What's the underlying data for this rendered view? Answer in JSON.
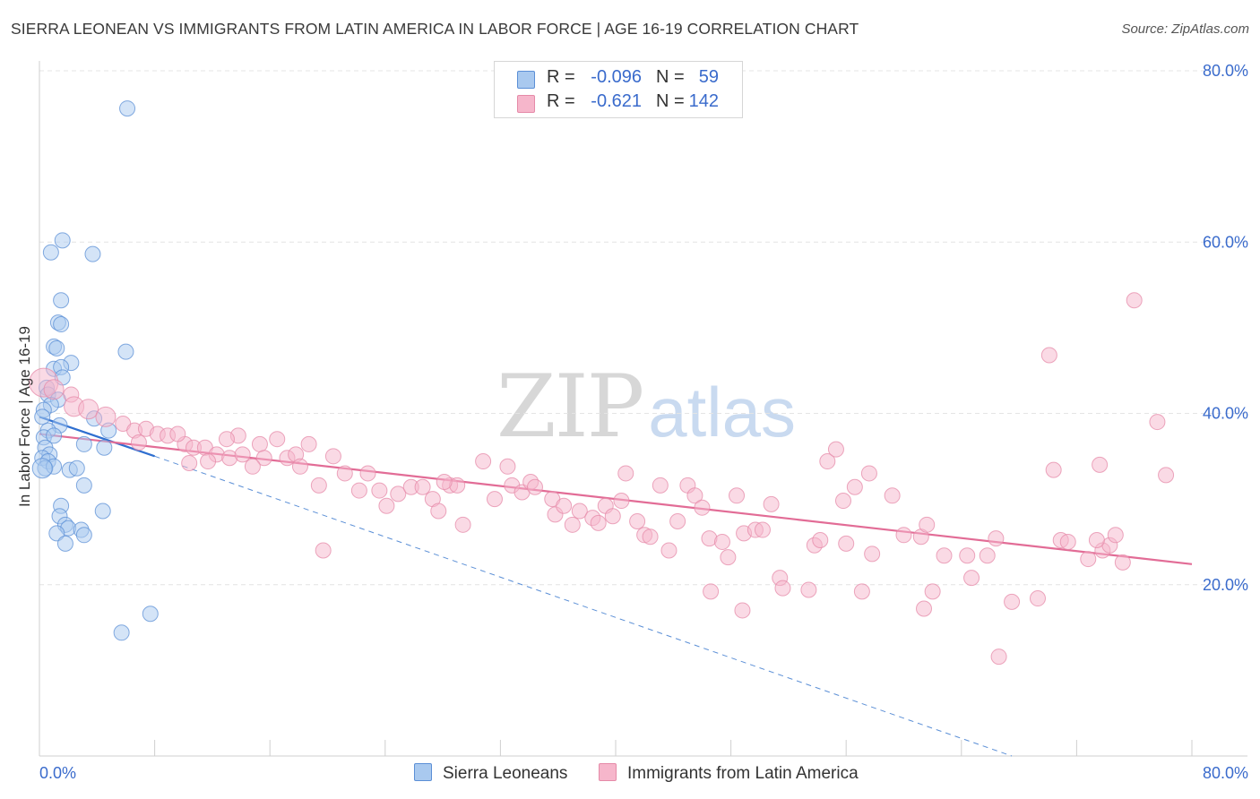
{
  "title": "SIERRA LEONEAN VS IMMIGRANTS FROM LATIN AMERICA IN LABOR FORCE | AGE 16-19 CORRELATION CHART",
  "source": "Source: ZipAtlas.com",
  "watermark": {
    "zip": "ZIP",
    "atlas": "atlas"
  },
  "colors": {
    "blue_fill": "#a9c9ef",
    "blue_stroke": "#5b8fd6",
    "blue_line": "#2f6fd0",
    "pink_fill": "#f6b6cb",
    "pink_stroke": "#e58aa8",
    "pink_line": "#e26c96",
    "axis_label": "#3a6bcc",
    "grid": "#e4e4e4"
  },
  "legend": [
    {
      "r_label": "R =",
      "r_value": "-0.096",
      "n_label": "N =",
      "n_value": "59",
      "color": "#a9c9ef",
      "border": "#5b8fd6"
    },
    {
      "r_label": "R =",
      "r_value": "-0.621",
      "n_label": "N =",
      "n_value": "142",
      "color": "#f6b6cb",
      "border": "#e58aa8"
    }
  ],
  "bottom_legend": [
    {
      "label": "Sierra Leoneans",
      "color": "#a9c9ef",
      "border": "#5b8fd6"
    },
    {
      "label": "Immigrants from Latin America",
      "color": "#f6b6cb",
      "border": "#e58aa8"
    }
  ],
  "chart_data": {
    "type": "scatter",
    "title": "SIERRA LEONEAN VS IMMIGRANTS FROM LATIN AMERICA IN LABOR FORCE | AGE 16-19 CORRELATION CHART",
    "xlabel": "",
    "ylabel": "In Labor Force | Age 16-19",
    "xlim": [
      0,
      80
    ],
    "ylim": [
      0,
      80
    ],
    "x_tick_labels": [
      "0.0%",
      "80.0%"
    ],
    "y_ticks": [
      20,
      40,
      60,
      80
    ],
    "y_tick_labels": [
      "20.0%",
      "40.0%",
      "60.0%",
      "80.0%"
    ],
    "series": [
      {
        "name": "Sierra Leoneans",
        "r": -0.096,
        "n": 59,
        "trend": {
          "x": [
            0,
            8
          ],
          "y": [
            39.6,
            35.0
          ]
        },
        "trend_extended": {
          "x": [
            8,
            67.5
          ],
          "y": [
            35.0,
            0
          ]
        },
        "points": [
          {
            "x": 6.1,
            "y": 75.6,
            "s": 1
          },
          {
            "x": 1.6,
            "y": 60.2,
            "s": 1
          },
          {
            "x": 0.8,
            "y": 58.8,
            "s": 1
          },
          {
            "x": 3.7,
            "y": 58.6,
            "s": 1
          },
          {
            "x": 1.5,
            "y": 53.2,
            "s": 1
          },
          {
            "x": 1.3,
            "y": 50.6,
            "s": 1
          },
          {
            "x": 1.5,
            "y": 50.4,
            "s": 1
          },
          {
            "x": 1.0,
            "y": 47.8,
            "s": 1
          },
          {
            "x": 1.2,
            "y": 47.6,
            "s": 1
          },
          {
            "x": 6.0,
            "y": 47.2,
            "s": 1
          },
          {
            "x": 2.2,
            "y": 45.9,
            "s": 1
          },
          {
            "x": 1.0,
            "y": 45.2,
            "s": 1
          },
          {
            "x": 1.5,
            "y": 45.4,
            "s": 1
          },
          {
            "x": 1.6,
            "y": 44.2,
            "s": 1
          },
          {
            "x": 0.5,
            "y": 43.0,
            "s": 1
          },
          {
            "x": 0.6,
            "y": 42.2,
            "s": 1
          },
          {
            "x": 1.3,
            "y": 41.6,
            "s": 1
          },
          {
            "x": 0.8,
            "y": 41.0,
            "s": 1
          },
          {
            "x": 0.3,
            "y": 40.4,
            "s": 1
          },
          {
            "x": 0.2,
            "y": 39.6,
            "s": 1
          },
          {
            "x": 3.8,
            "y": 39.4,
            "s": 1
          },
          {
            "x": 1.4,
            "y": 38.6,
            "s": 1
          },
          {
            "x": 0.6,
            "y": 38.0,
            "s": 1
          },
          {
            "x": 0.3,
            "y": 37.2,
            "s": 1
          },
          {
            "x": 1.0,
            "y": 37.4,
            "s": 1
          },
          {
            "x": 4.8,
            "y": 38.0,
            "s": 1
          },
          {
            "x": 3.1,
            "y": 36.4,
            "s": 1
          },
          {
            "x": 4.5,
            "y": 36.0,
            "s": 1
          },
          {
            "x": 0.4,
            "y": 36.0,
            "s": 1
          },
          {
            "x": 0.7,
            "y": 35.2,
            "s": 1
          },
          {
            "x": 0.2,
            "y": 34.8,
            "s": 1
          },
          {
            "x": 0.6,
            "y": 34.4,
            "s": 1
          },
          {
            "x": 0.4,
            "y": 33.6,
            "s": 1
          },
          {
            "x": 1.0,
            "y": 33.8,
            "s": 1
          },
          {
            "x": 0.2,
            "y": 33.6,
            "s": 2
          },
          {
            "x": 2.1,
            "y": 33.4,
            "s": 1
          },
          {
            "x": 2.6,
            "y": 33.6,
            "s": 1
          },
          {
            "x": 3.1,
            "y": 31.6,
            "s": 1
          },
          {
            "x": 1.5,
            "y": 29.2,
            "s": 1
          },
          {
            "x": 1.4,
            "y": 28.0,
            "s": 1
          },
          {
            "x": 4.4,
            "y": 28.6,
            "s": 1
          },
          {
            "x": 1.8,
            "y": 27.0,
            "s": 1
          },
          {
            "x": 2.0,
            "y": 26.6,
            "s": 1
          },
          {
            "x": 1.2,
            "y": 26.0,
            "s": 1
          },
          {
            "x": 2.9,
            "y": 26.4,
            "s": 1
          },
          {
            "x": 3.1,
            "y": 25.8,
            "s": 1
          },
          {
            "x": 1.8,
            "y": 24.8,
            "s": 1
          },
          {
            "x": 7.7,
            "y": 16.6,
            "s": 1
          },
          {
            "x": 5.7,
            "y": 14.4,
            "s": 1
          }
        ]
      },
      {
        "name": "Immigrants from Latin America",
        "r": -0.621,
        "n": 142,
        "trend": {
          "x": [
            0,
            80
          ],
          "y": [
            37.6,
            22.4
          ]
        },
        "points": [
          {
            "x": 0.3,
            "y": 43.6,
            "s": 3
          },
          {
            "x": 1.0,
            "y": 42.8,
            "s": 2
          },
          {
            "x": 2.2,
            "y": 42.2,
            "s": 1
          },
          {
            "x": 2.4,
            "y": 40.8,
            "s": 2
          },
          {
            "x": 3.4,
            "y": 40.5,
            "s": 2
          },
          {
            "x": 4.6,
            "y": 39.6,
            "s": 2
          },
          {
            "x": 5.8,
            "y": 38.8,
            "s": 1
          },
          {
            "x": 6.6,
            "y": 38.0,
            "s": 1
          },
          {
            "x": 7.4,
            "y": 38.2,
            "s": 1
          },
          {
            "x": 8.2,
            "y": 37.6,
            "s": 1
          },
          {
            "x": 8.9,
            "y": 37.4,
            "s": 1
          },
          {
            "x": 10.1,
            "y": 36.4,
            "s": 1
          },
          {
            "x": 10.7,
            "y": 36.0,
            "s": 1
          },
          {
            "x": 11.5,
            "y": 36.0,
            "s": 1
          },
          {
            "x": 12.3,
            "y": 35.2,
            "s": 1
          },
          {
            "x": 13.8,
            "y": 37.4,
            "s": 1
          },
          {
            "x": 13.2,
            "y": 34.8,
            "s": 1
          },
          {
            "x": 14.1,
            "y": 35.2,
            "s": 1
          },
          {
            "x": 15.3,
            "y": 36.4,
            "s": 1
          },
          {
            "x": 15.6,
            "y": 34.8,
            "s": 1
          },
          {
            "x": 16.5,
            "y": 37.0,
            "s": 1
          },
          {
            "x": 17.2,
            "y": 34.8,
            "s": 1
          },
          {
            "x": 17.8,
            "y": 35.2,
            "s": 1
          },
          {
            "x": 18.7,
            "y": 36.4,
            "s": 1
          },
          {
            "x": 18.1,
            "y": 33.8,
            "s": 1
          },
          {
            "x": 11.7,
            "y": 34.4,
            "s": 1
          },
          {
            "x": 10.4,
            "y": 34.2,
            "s": 1
          },
          {
            "x": 14.8,
            "y": 33.8,
            "s": 1
          },
          {
            "x": 19.4,
            "y": 31.6,
            "s": 1
          },
          {
            "x": 20.4,
            "y": 35.0,
            "s": 1
          },
          {
            "x": 21.2,
            "y": 33.0,
            "s": 1
          },
          {
            "x": 22.2,
            "y": 31.0,
            "s": 1
          },
          {
            "x": 22.8,
            "y": 33.0,
            "s": 1
          },
          {
            "x": 24.9,
            "y": 30.6,
            "s": 1
          },
          {
            "x": 24.1,
            "y": 29.2,
            "s": 1
          },
          {
            "x": 25.8,
            "y": 31.4,
            "s": 1
          },
          {
            "x": 26.6,
            "y": 31.4,
            "s": 1
          },
          {
            "x": 27.3,
            "y": 30.0,
            "s": 1
          },
          {
            "x": 27.7,
            "y": 28.6,
            "s": 1
          },
          {
            "x": 28.5,
            "y": 31.6,
            "s": 1
          },
          {
            "x": 29.0,
            "y": 31.6,
            "s": 1
          },
          {
            "x": 29.4,
            "y": 27.0,
            "s": 1
          },
          {
            "x": 30.8,
            "y": 34.4,
            "s": 1
          },
          {
            "x": 31.6,
            "y": 30.0,
            "s": 1
          },
          {
            "x": 32.5,
            "y": 33.8,
            "s": 1
          },
          {
            "x": 32.8,
            "y": 31.6,
            "s": 1
          },
          {
            "x": 33.5,
            "y": 30.8,
            "s": 1
          },
          {
            "x": 34.1,
            "y": 32.0,
            "s": 1
          },
          {
            "x": 34.4,
            "y": 31.4,
            "s": 1
          },
          {
            "x": 35.6,
            "y": 30.0,
            "s": 1
          },
          {
            "x": 35.8,
            "y": 28.2,
            "s": 1
          },
          {
            "x": 36.4,
            "y": 29.2,
            "s": 1
          },
          {
            "x": 37.0,
            "y": 27.0,
            "s": 1
          },
          {
            "x": 37.5,
            "y": 28.6,
            "s": 1
          },
          {
            "x": 38.4,
            "y": 27.8,
            "s": 1
          },
          {
            "x": 38.8,
            "y": 27.2,
            "s": 1
          },
          {
            "x": 39.3,
            "y": 29.2,
            "s": 1
          },
          {
            "x": 39.8,
            "y": 28.0,
            "s": 1
          },
          {
            "x": 40.4,
            "y": 29.8,
            "s": 1
          },
          {
            "x": 40.7,
            "y": 33.0,
            "s": 1
          },
          {
            "x": 41.5,
            "y": 27.4,
            "s": 1
          },
          {
            "x": 42.0,
            "y": 25.8,
            "s": 1
          },
          {
            "x": 42.4,
            "y": 25.6,
            "s": 1
          },
          {
            "x": 43.1,
            "y": 31.6,
            "s": 1
          },
          {
            "x": 43.7,
            "y": 24.0,
            "s": 1
          },
          {
            "x": 44.3,
            "y": 27.4,
            "s": 1
          },
          {
            "x": 45.0,
            "y": 31.6,
            "s": 1
          },
          {
            "x": 45.5,
            "y": 30.4,
            "s": 1
          },
          {
            "x": 46.0,
            "y": 29.0,
            "s": 1
          },
          {
            "x": 46.5,
            "y": 25.4,
            "s": 1
          },
          {
            "x": 47.4,
            "y": 25.0,
            "s": 1
          },
          {
            "x": 47.8,
            "y": 23.2,
            "s": 1
          },
          {
            "x": 48.9,
            "y": 26.0,
            "s": 1
          },
          {
            "x": 48.4,
            "y": 30.4,
            "s": 1
          },
          {
            "x": 49.7,
            "y": 26.4,
            "s": 1
          },
          {
            "x": 50.2,
            "y": 26.4,
            "s": 1
          },
          {
            "x": 50.8,
            "y": 29.4,
            "s": 1
          },
          {
            "x": 51.4,
            "y": 20.8,
            "s": 1
          },
          {
            "x": 51.6,
            "y": 19.6,
            "s": 1
          },
          {
            "x": 53.4,
            "y": 19.4,
            "s": 1
          },
          {
            "x": 53.8,
            "y": 24.6,
            "s": 1
          },
          {
            "x": 54.2,
            "y": 25.2,
            "s": 1
          },
          {
            "x": 54.7,
            "y": 34.4,
            "s": 1
          },
          {
            "x": 55.3,
            "y": 35.8,
            "s": 1
          },
          {
            "x": 56.0,
            "y": 24.8,
            "s": 1
          },
          {
            "x": 56.6,
            "y": 31.4,
            "s": 1
          },
          {
            "x": 57.6,
            "y": 33.0,
            "s": 1
          },
          {
            "x": 57.1,
            "y": 19.2,
            "s": 1
          },
          {
            "x": 57.8,
            "y": 23.6,
            "s": 1
          },
          {
            "x": 59.2,
            "y": 30.4,
            "s": 1
          },
          {
            "x": 60.0,
            "y": 25.8,
            "s": 1
          },
          {
            "x": 61.2,
            "y": 25.6,
            "s": 1
          },
          {
            "x": 61.6,
            "y": 27.0,
            "s": 1
          },
          {
            "x": 62.0,
            "y": 19.2,
            "s": 1
          },
          {
            "x": 62.8,
            "y": 23.4,
            "s": 1
          },
          {
            "x": 64.4,
            "y": 23.4,
            "s": 1
          },
          {
            "x": 64.7,
            "y": 20.8,
            "s": 1
          },
          {
            "x": 65.8,
            "y": 23.4,
            "s": 1
          },
          {
            "x": 66.4,
            "y": 25.4,
            "s": 1
          },
          {
            "x": 67.5,
            "y": 18.0,
            "s": 1
          },
          {
            "x": 69.3,
            "y": 18.4,
            "s": 1
          },
          {
            "x": 70.1,
            "y": 46.8,
            "s": 1
          },
          {
            "x": 70.9,
            "y": 25.2,
            "s": 1
          },
          {
            "x": 71.4,
            "y": 25.0,
            "s": 1
          },
          {
            "x": 72.8,
            "y": 23.0,
            "s": 1
          },
          {
            "x": 73.8,
            "y": 24.0,
            "s": 1
          },
          {
            "x": 74.3,
            "y": 24.6,
            "s": 1
          },
          {
            "x": 74.7,
            "y": 25.8,
            "s": 1
          },
          {
            "x": 75.2,
            "y": 22.6,
            "s": 1
          },
          {
            "x": 76.0,
            "y": 53.2,
            "s": 1
          },
          {
            "x": 77.6,
            "y": 39.0,
            "s": 1
          },
          {
            "x": 78.2,
            "y": 32.8,
            "s": 1
          },
          {
            "x": 73.6,
            "y": 34.0,
            "s": 1
          },
          {
            "x": 73.4,
            "y": 25.2,
            "s": 1
          },
          {
            "x": 70.4,
            "y": 33.4,
            "s": 1
          },
          {
            "x": 66.6,
            "y": 11.6,
            "s": 1
          },
          {
            "x": 61.4,
            "y": 17.2,
            "s": 1
          },
          {
            "x": 48.8,
            "y": 17.0,
            "s": 1
          },
          {
            "x": 46.6,
            "y": 19.2,
            "s": 1
          },
          {
            "x": 55.8,
            "y": 29.8,
            "s": 1
          },
          {
            "x": 19.7,
            "y": 24.0,
            "s": 1
          },
          {
            "x": 28.1,
            "y": 32.0,
            "s": 1
          },
          {
            "x": 23.6,
            "y": 31.0,
            "s": 1
          },
          {
            "x": 13.0,
            "y": 37.0,
            "s": 1
          },
          {
            "x": 9.6,
            "y": 37.6,
            "s": 1
          },
          {
            "x": 6.9,
            "y": 36.6,
            "s": 1
          }
        ]
      }
    ]
  }
}
